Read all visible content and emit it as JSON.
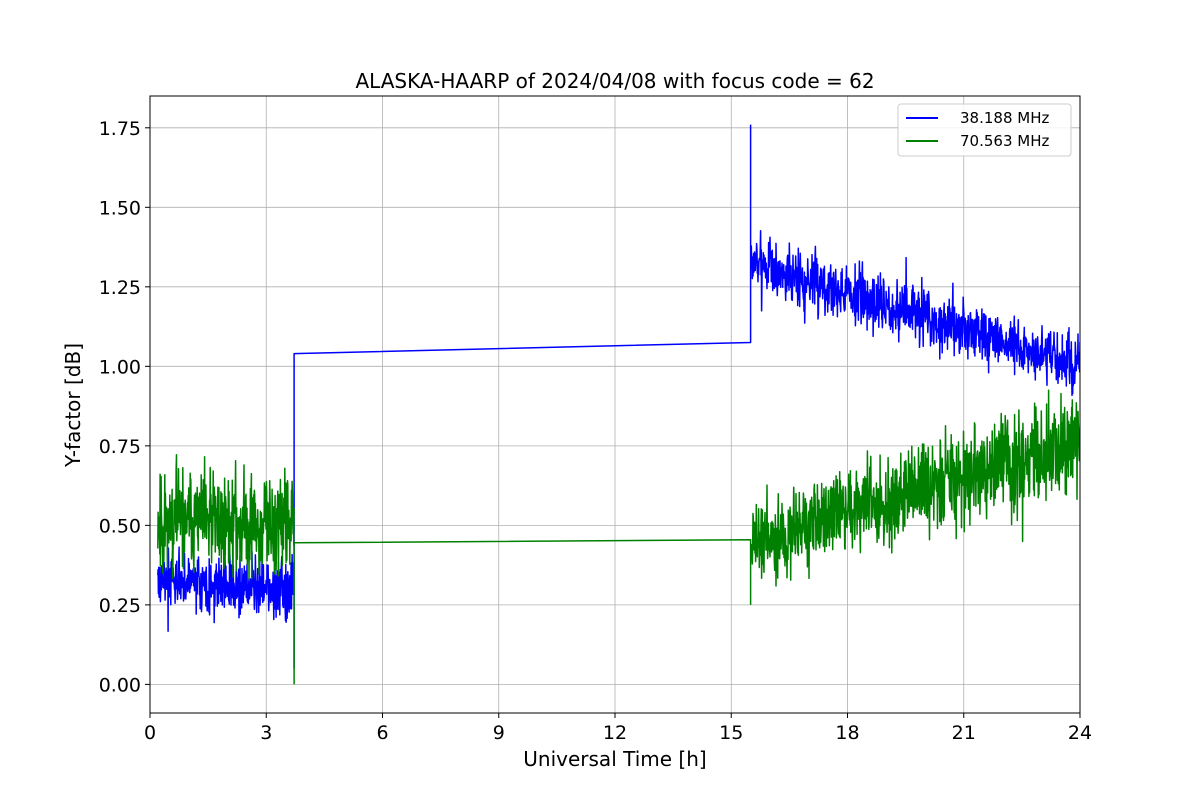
{
  "chart_data": {
    "type": "line",
    "title": "ALASKA-HAARP of 2024/04/08 with focus code = 62",
    "xlabel": "Universal Time [h]",
    "ylabel": "Y-factor [dB]",
    "xlim": [
      0,
      24
    ],
    "ylim": [
      -0.09,
      1.85
    ],
    "xticks": [
      0,
      3,
      6,
      9,
      12,
      15,
      18,
      21,
      24
    ],
    "xtick_labels": [
      "0",
      "3",
      "6",
      "9",
      "12",
      "15",
      "18",
      "21",
      "24"
    ],
    "yticks": [
      0.0,
      0.25,
      0.5,
      0.75,
      1.0,
      1.25,
      1.5,
      1.75
    ],
    "ytick_labels": [
      "0.00",
      "0.25",
      "0.50",
      "0.75",
      "1.00",
      "1.25",
      "1.50",
      "1.75"
    ],
    "grid": true,
    "legend_position": "top-right",
    "series": [
      {
        "name": "38.188 MHz",
        "color": "#0000ff",
        "segments": [
          {
            "x_start": 0.2,
            "x_end": 3.72,
            "mean_start": 0.33,
            "mean_end": 0.3,
            "amp_start": 0.12,
            "amp_end": 0.14,
            "seed": 3
          },
          {
            "x": [
              3.72,
              3.72,
              15.5,
              15.5
            ],
            "y": [
              0.05,
              1.04,
              1.075,
              1.76
            ]
          },
          {
            "x_start": 15.5,
            "x_end": 24.0,
            "mean_start": 1.33,
            "mean_end": 1.0,
            "amp_start": 0.14,
            "amp_end": 0.12,
            "seed": 7
          }
        ]
      },
      {
        "name": "70.563 MHz",
        "color": "#008000",
        "segments": [
          {
            "x_start": 0.2,
            "x_end": 3.72,
            "mean_start": 0.52,
            "mean_end": 0.5,
            "amp_start": 0.22,
            "amp_end": 0.24,
            "seed": 11
          },
          {
            "x": [
              3.72,
              3.72,
              15.5,
              15.5
            ],
            "y": [
              0.0,
              0.445,
              0.455,
              0.25
            ]
          },
          {
            "x_start": 15.5,
            "x_end": 24.0,
            "mean_start": 0.44,
            "mean_end": 0.77,
            "amp_start": 0.2,
            "amp_end": 0.22,
            "seed": 19
          }
        ]
      }
    ]
  }
}
